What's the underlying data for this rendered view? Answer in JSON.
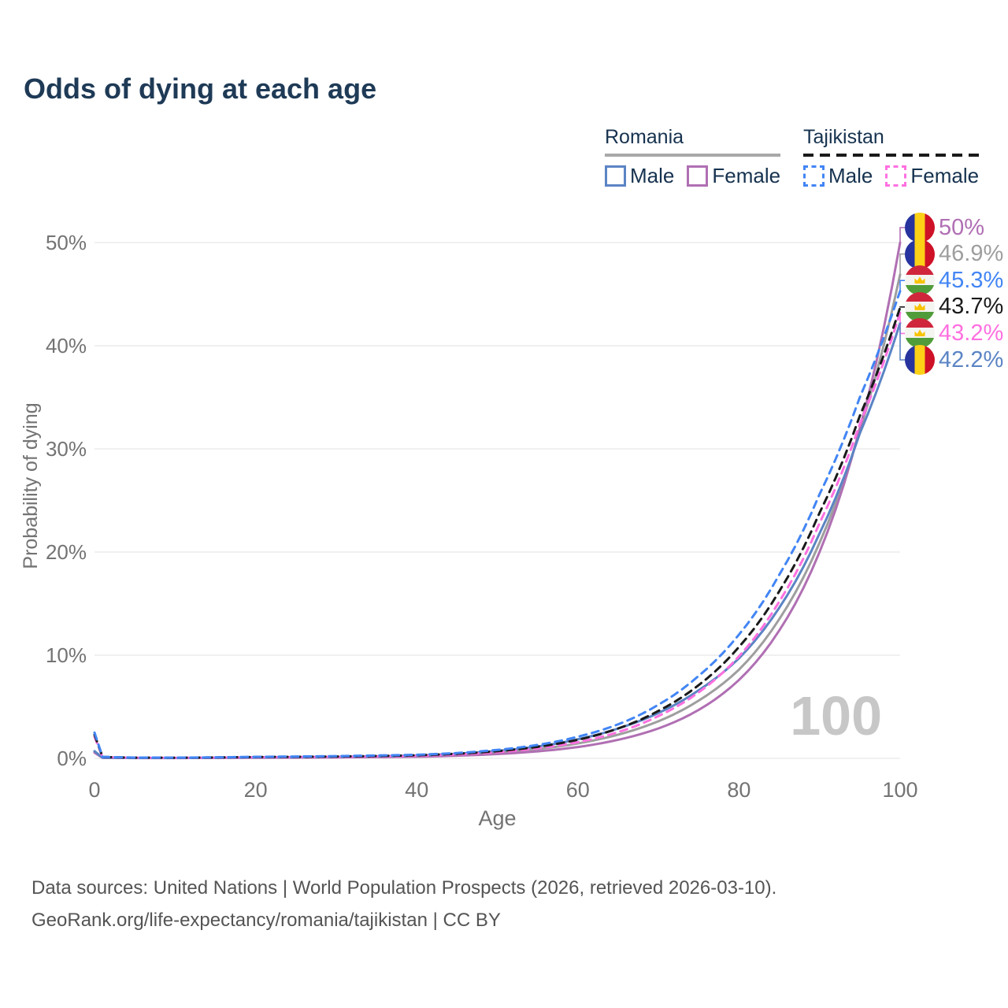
{
  "title": "Odds of dying at each age",
  "colors": {
    "title_text": "#1e3a56",
    "axis_text": "#737373",
    "grid": "#ececec",
    "watermark": "#c7c7c7"
  },
  "legend": {
    "groups": [
      {
        "label": "Romania",
        "line_style": "solid",
        "underline_color": "#a8a8a8",
        "items": [
          {
            "label": "Male",
            "color": "#5b84c4",
            "dashed": false
          },
          {
            "label": "Female",
            "color": "#b06fb3",
            "dashed": false
          }
        ]
      },
      {
        "label": "Tajikistan",
        "line_style": "dashed",
        "underline_color": "#1a1a1a",
        "items": [
          {
            "label": "Male",
            "color": "#4285f4",
            "dashed": true
          },
          {
            "label": "Female",
            "color": "#ff70e0",
            "dashed": true
          }
        ]
      }
    ]
  },
  "chart_data": {
    "type": "line",
    "title": "Odds of dying at each age",
    "xlabel": "Age",
    "ylabel": "Probability of dying",
    "xlim": [
      0,
      100
    ],
    "ylim": [
      0,
      52
    ],
    "grid": "horizontal",
    "x_ticks": [
      0,
      20,
      40,
      60,
      80,
      100
    ],
    "y_ticks": [
      {
        "value": 0,
        "label": "0%"
      },
      {
        "value": 10,
        "label": "10%"
      },
      {
        "value": 20,
        "label": "20%"
      },
      {
        "value": 30,
        "label": "30%"
      },
      {
        "value": 40,
        "label": "40%"
      },
      {
        "value": 50,
        "label": "50%"
      }
    ],
    "ages": [
      0,
      1,
      5,
      10,
      15,
      20,
      25,
      30,
      35,
      40,
      45,
      50,
      55,
      60,
      65,
      70,
      75,
      80,
      85,
      90,
      95,
      100
    ],
    "series": [
      {
        "id": "romania-total",
        "name": "Romania (both sexes)",
        "country": "Romania",
        "flag": "romania",
        "color": "#9e9e9e",
        "dashed": false,
        "end_label": "46.9%",
        "values": [
          0.63,
          0.06,
          0.035,
          0.035,
          0.055,
          0.08,
          0.1,
          0.12,
          0.16,
          0.22,
          0.35,
          0.56,
          0.9,
          1.45,
          2.3,
          3.6,
          5.6,
          8.6,
          13.5,
          20.9,
          31.8,
          46.9
        ]
      },
      {
        "id": "romania-female",
        "name": "Romania Female",
        "country": "Romania",
        "flag": "romania",
        "color": "#b06fb3",
        "dashed": false,
        "end_label": "50%",
        "values": [
          0.55,
          0.05,
          0.03,
          0.03,
          0.04,
          0.06,
          0.07,
          0.09,
          0.12,
          0.16,
          0.26,
          0.42,
          0.68,
          1.1,
          1.8,
          2.9,
          4.7,
          7.6,
          12.4,
          20.0,
          32.0,
          50.0
        ]
      },
      {
        "id": "romania-male",
        "name": "Romania Male",
        "country": "Romania",
        "flag": "romania",
        "color": "#5b84c4",
        "dashed": false,
        "end_label": "42.2%",
        "values": [
          0.7,
          0.07,
          0.04,
          0.04,
          0.07,
          0.1,
          0.12,
          0.15,
          0.2,
          0.28,
          0.45,
          0.72,
          1.15,
          1.85,
          2.9,
          4.4,
          6.6,
          9.7,
          14.6,
          21.8,
          31.5,
          42.2
        ]
      },
      {
        "id": "tajikistan-female",
        "name": "Tajikistan Female",
        "country": "Tajikistan",
        "flag": "tajikistan",
        "color": "#ff70e0",
        "dashed": true,
        "end_label": "43.2%",
        "values": [
          2.1,
          0.13,
          0.065,
          0.055,
          0.08,
          0.11,
          0.13,
          0.15,
          0.19,
          0.25,
          0.38,
          0.6,
          0.97,
          1.57,
          2.55,
          4.1,
          6.4,
          9.9,
          15.2,
          22.8,
          32.4,
          43.2
        ]
      },
      {
        "id": "tajikistan-total",
        "name": "Tajikistan (both sexes)",
        "country": "Tajikistan",
        "flag": "tajikistan",
        "color": "#1a1a1a",
        "dashed": true,
        "end_label": "43.7%",
        "values": [
          2.3,
          0.14,
          0.07,
          0.06,
          0.09,
          0.13,
          0.15,
          0.18,
          0.23,
          0.3,
          0.45,
          0.7,
          1.12,
          1.8,
          2.9,
          4.6,
          7.1,
          10.8,
          16.2,
          23.8,
          33.2,
          43.7
        ]
      },
      {
        "id": "tajikistan-male",
        "name": "Tajikistan Male",
        "country": "Tajikistan",
        "flag": "tajikistan",
        "color": "#4285f4",
        "dashed": true,
        "end_label": "45.3%",
        "values": [
          2.5,
          0.15,
          0.08,
          0.07,
          0.1,
          0.15,
          0.18,
          0.22,
          0.28,
          0.35,
          0.52,
          0.82,
          1.3,
          2.1,
          3.3,
          5.2,
          8.0,
          12.0,
          17.8,
          25.6,
          35.0,
          45.3
        ]
      }
    ]
  },
  "watermark": "100",
  "footer": {
    "line1": "Data sources: United Nations | World Population Prospects (2026, retrieved 2026-03-10).",
    "line2": "GeoRank.org/life-expectancy/romania/tajikistan | CC BY"
  }
}
